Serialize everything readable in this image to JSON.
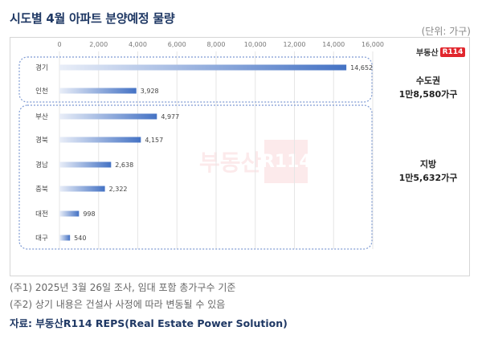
{
  "title": "시도별 4월 아파트 분양예정 물량",
  "unit": "(단위: 가구)",
  "brand": {
    "name": "부동산",
    "badge": "R114"
  },
  "watermark": {
    "name": "부동산",
    "badge": "R114"
  },
  "groups": [
    {
      "name": "수도권",
      "total": "1만8,580가구"
    },
    {
      "name": "지방",
      "total": "1만5,632가구"
    }
  ],
  "colors": {
    "bar": "#4472c4",
    "bar_fade": "#e9eef8",
    "group_border": "#7f9bd3",
    "title": "#1f3864"
  },
  "chart_data": {
    "type": "bar",
    "orientation": "horizontal",
    "categories": [
      "경기",
      "인천",
      "부산",
      "경북",
      "경남",
      "충북",
      "대전",
      "대구"
    ],
    "values": [
      14652,
      3928,
      4977,
      4157,
      2638,
      2322,
      998,
      540
    ],
    "value_labels": [
      "14,652",
      "3,928",
      "4,977",
      "4,157",
      "2,638",
      "2,322",
      "998",
      "540"
    ],
    "xlim": [
      0,
      16000
    ],
    "ticks": [
      0,
      2000,
      4000,
      6000,
      8000,
      10000,
      12000,
      14000,
      16000
    ],
    "tick_labels": [
      "0",
      "2,000",
      "4,000",
      "6,000",
      "8,000",
      "10,000",
      "12,000",
      "14,000",
      "16,000"
    ],
    "grid": true,
    "axis_position": "top"
  },
  "notes": [
    "(주1) 2025년 3월 26일 조사, 임대 포함 총가구수 기준",
    "(주2) 상기 내용은 건설사 사정에 따라 변동될 수 있음"
  ],
  "source": "자료: 부동산R114 REPS(Real Estate Power Solution)"
}
